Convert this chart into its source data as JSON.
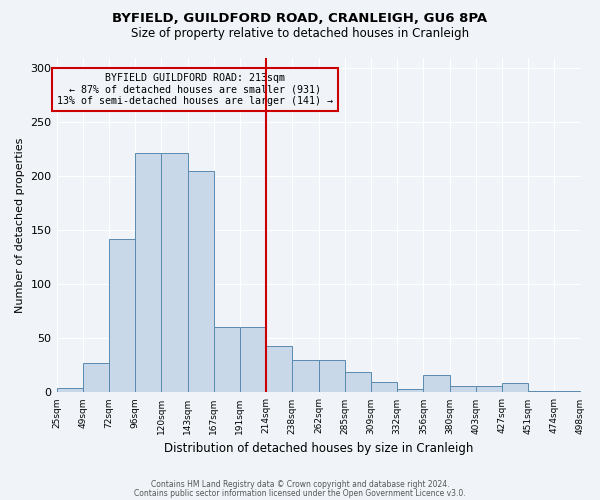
{
  "title": "BYFIELD, GUILDFORD ROAD, CRANLEIGH, GU6 8PA",
  "subtitle": "Size of property relative to detached houses in Cranleigh",
  "xlabel": "Distribution of detached houses by size in Cranleigh",
  "ylabel": "Number of detached properties",
  "bin_labels": [
    "25sqm",
    "49sqm",
    "72sqm",
    "96sqm",
    "120sqm",
    "143sqm",
    "167sqm",
    "191sqm",
    "214sqm",
    "238sqm",
    "262sqm",
    "285sqm",
    "309sqm",
    "332sqm",
    "356sqm",
    "380sqm",
    "403sqm",
    "427sqm",
    "451sqm",
    "474sqm",
    "498sqm"
  ],
  "bar_heights": [
    4,
    27,
    142,
    222,
    222,
    205,
    61,
    61,
    43,
    30,
    30,
    19,
    10,
    3,
    16,
    6,
    6,
    9,
    1,
    1
  ],
  "bar_color": "#c8d8e8",
  "bar_edge_color": "#5a8ab0",
  "property_line_x": 8,
  "property_line_color": "#cc0000",
  "annotation_title": "BYFIELD GUILDFORD ROAD: 213sqm",
  "annotation_line1": "← 87% of detached houses are smaller (931)",
  "annotation_line2": "13% of semi-detached houses are larger (141) →",
  "annotation_box_color": "#cc0000",
  "ylim": [
    0,
    310
  ],
  "yticks": [
    0,
    50,
    100,
    150,
    200,
    250,
    300
  ],
  "footer1": "Contains HM Land Registry data © Crown copyright and database right 2024.",
  "footer2": "Contains public sector information licensed under the Open Government Licence v3.0.",
  "background_color": "#f0f4f8",
  "grid_color": "#ffffff"
}
